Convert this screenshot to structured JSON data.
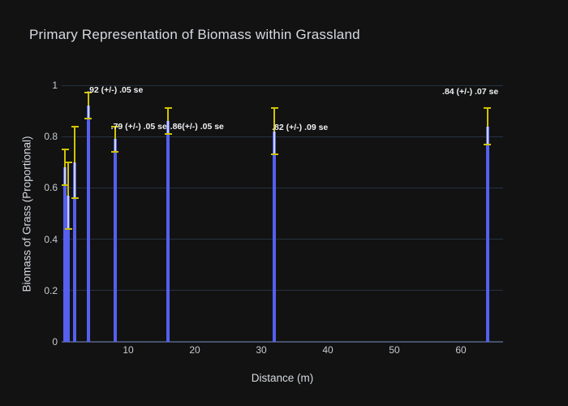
{
  "colors": {
    "background": "#121212",
    "bar": "#5560ee",
    "error_bar": "#d0c402",
    "error_bar_over_bar": "#ccd2e0",
    "gridline": "#253243",
    "axis_line": "#44526a",
    "title_text": "#d6dae0",
    "tick_text": "#c6cad1",
    "annotation_text": "#eef0f3"
  },
  "chart_data": {
    "type": "bar",
    "title": "Primary Representation of Biomass within Grassland",
    "xlabel": "Distance (m)",
    "ylabel": "Biomass of Grass (Proportional)",
    "x": [
      0.5,
      1,
      2,
      4,
      8,
      16,
      32,
      64
    ],
    "values": [
      0.68,
      0.57,
      0.7,
      0.92,
      0.79,
      0.86,
      0.82,
      0.84
    ],
    "error_y": [
      0.07,
      0.13,
      0.14,
      0.05,
      0.05,
      0.05,
      0.09,
      0.07
    ],
    "x_ticks": [
      10,
      20,
      30,
      40,
      50,
      60
    ],
    "y_ticks": [
      0,
      0.2,
      0.4,
      0.6,
      0.8,
      1
    ],
    "xlim": [
      0,
      66.3
    ],
    "ylim": [
      0,
      1.03
    ],
    "grid": "horizontal",
    "legend": "none",
    "error_bar_style": "yellow caps and shaft; shaft appears light gray where it overlaps a bar",
    "annotations": [
      {
        "text": ".92 (+/-) .05 se",
        "x": 3.8,
        "y": 0.982
      },
      {
        "text": ".79 (+/-) .05 se",
        "x": 7.4,
        "y": 0.839
      },
      {
        "text": ".86(+/-) .05 se",
        "x": 16.3,
        "y": 0.839
      },
      {
        "text": ".82 (+/-) .09 se",
        "x": 31.6,
        "y": 0.836
      },
      {
        "text": ".84 (+/-) .07 se",
        "x": 57.2,
        "y": 0.975
      }
    ]
  }
}
